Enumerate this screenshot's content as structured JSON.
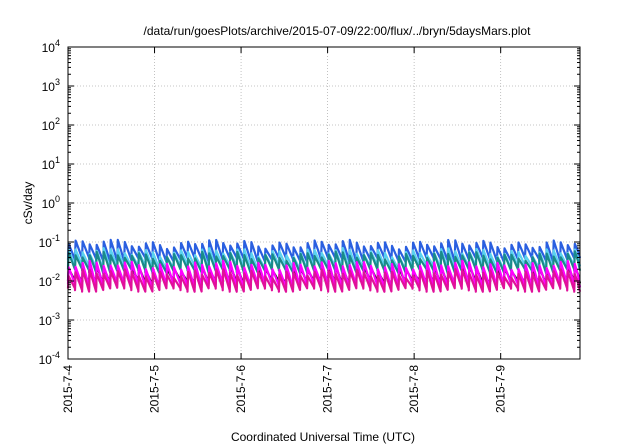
{
  "chart_data": {
    "type": "line",
    "title": "/data/run/goesPlots/archive/2015-07-09/22:00/flux/../bryn/5daysMars.plot",
    "xlabel": "Coordinated Universal Time (UTC)",
    "ylabel": "cSv/day",
    "yscale": "log",
    "ylim": [
      0.0001,
      10000
    ],
    "xlim": [
      "2015-07-04 00:00",
      "2015-07-09 22:00"
    ],
    "y_ticks": [
      {
        "base": "10",
        "exp": "-4"
      },
      {
        "base": "10",
        "exp": "-3"
      },
      {
        "base": "10",
        "exp": "-2"
      },
      {
        "base": "10",
        "exp": "-1"
      },
      {
        "base": "10",
        "exp": "0"
      },
      {
        "base": "10",
        "exp": "1"
      },
      {
        "base": "10",
        "exp": "2"
      },
      {
        "base": "10",
        "exp": "3"
      },
      {
        "base": "10",
        "exp": "4"
      }
    ],
    "x_ticks": [
      "2015-7-4",
      "2015-7-5",
      "2015-7-6",
      "2015-7-7",
      "2015-7-8",
      "2015-7-9"
    ],
    "grid": true,
    "pattern": {
      "period_hours": 1.95,
      "x_start_hours": 0,
      "x_end_hours": 142
    },
    "series": [
      {
        "color": "#2a5fe0",
        "values": [
          0.09,
          0.035
        ]
      },
      {
        "color": "#5ad2f0",
        "values": [
          0.055,
          0.022
        ]
      },
      {
        "color": "#1a8a8a",
        "values": [
          0.045,
          0.018
        ]
      },
      {
        "color": "#111111",
        "values": [
          0.02,
          0.009
        ]
      },
      {
        "color": "#ff00ff",
        "values": [
          0.026,
          0.0075
        ]
      },
      {
        "color": "#e0119a",
        "values": [
          0.016,
          0.006
        ]
      }
    ]
  }
}
